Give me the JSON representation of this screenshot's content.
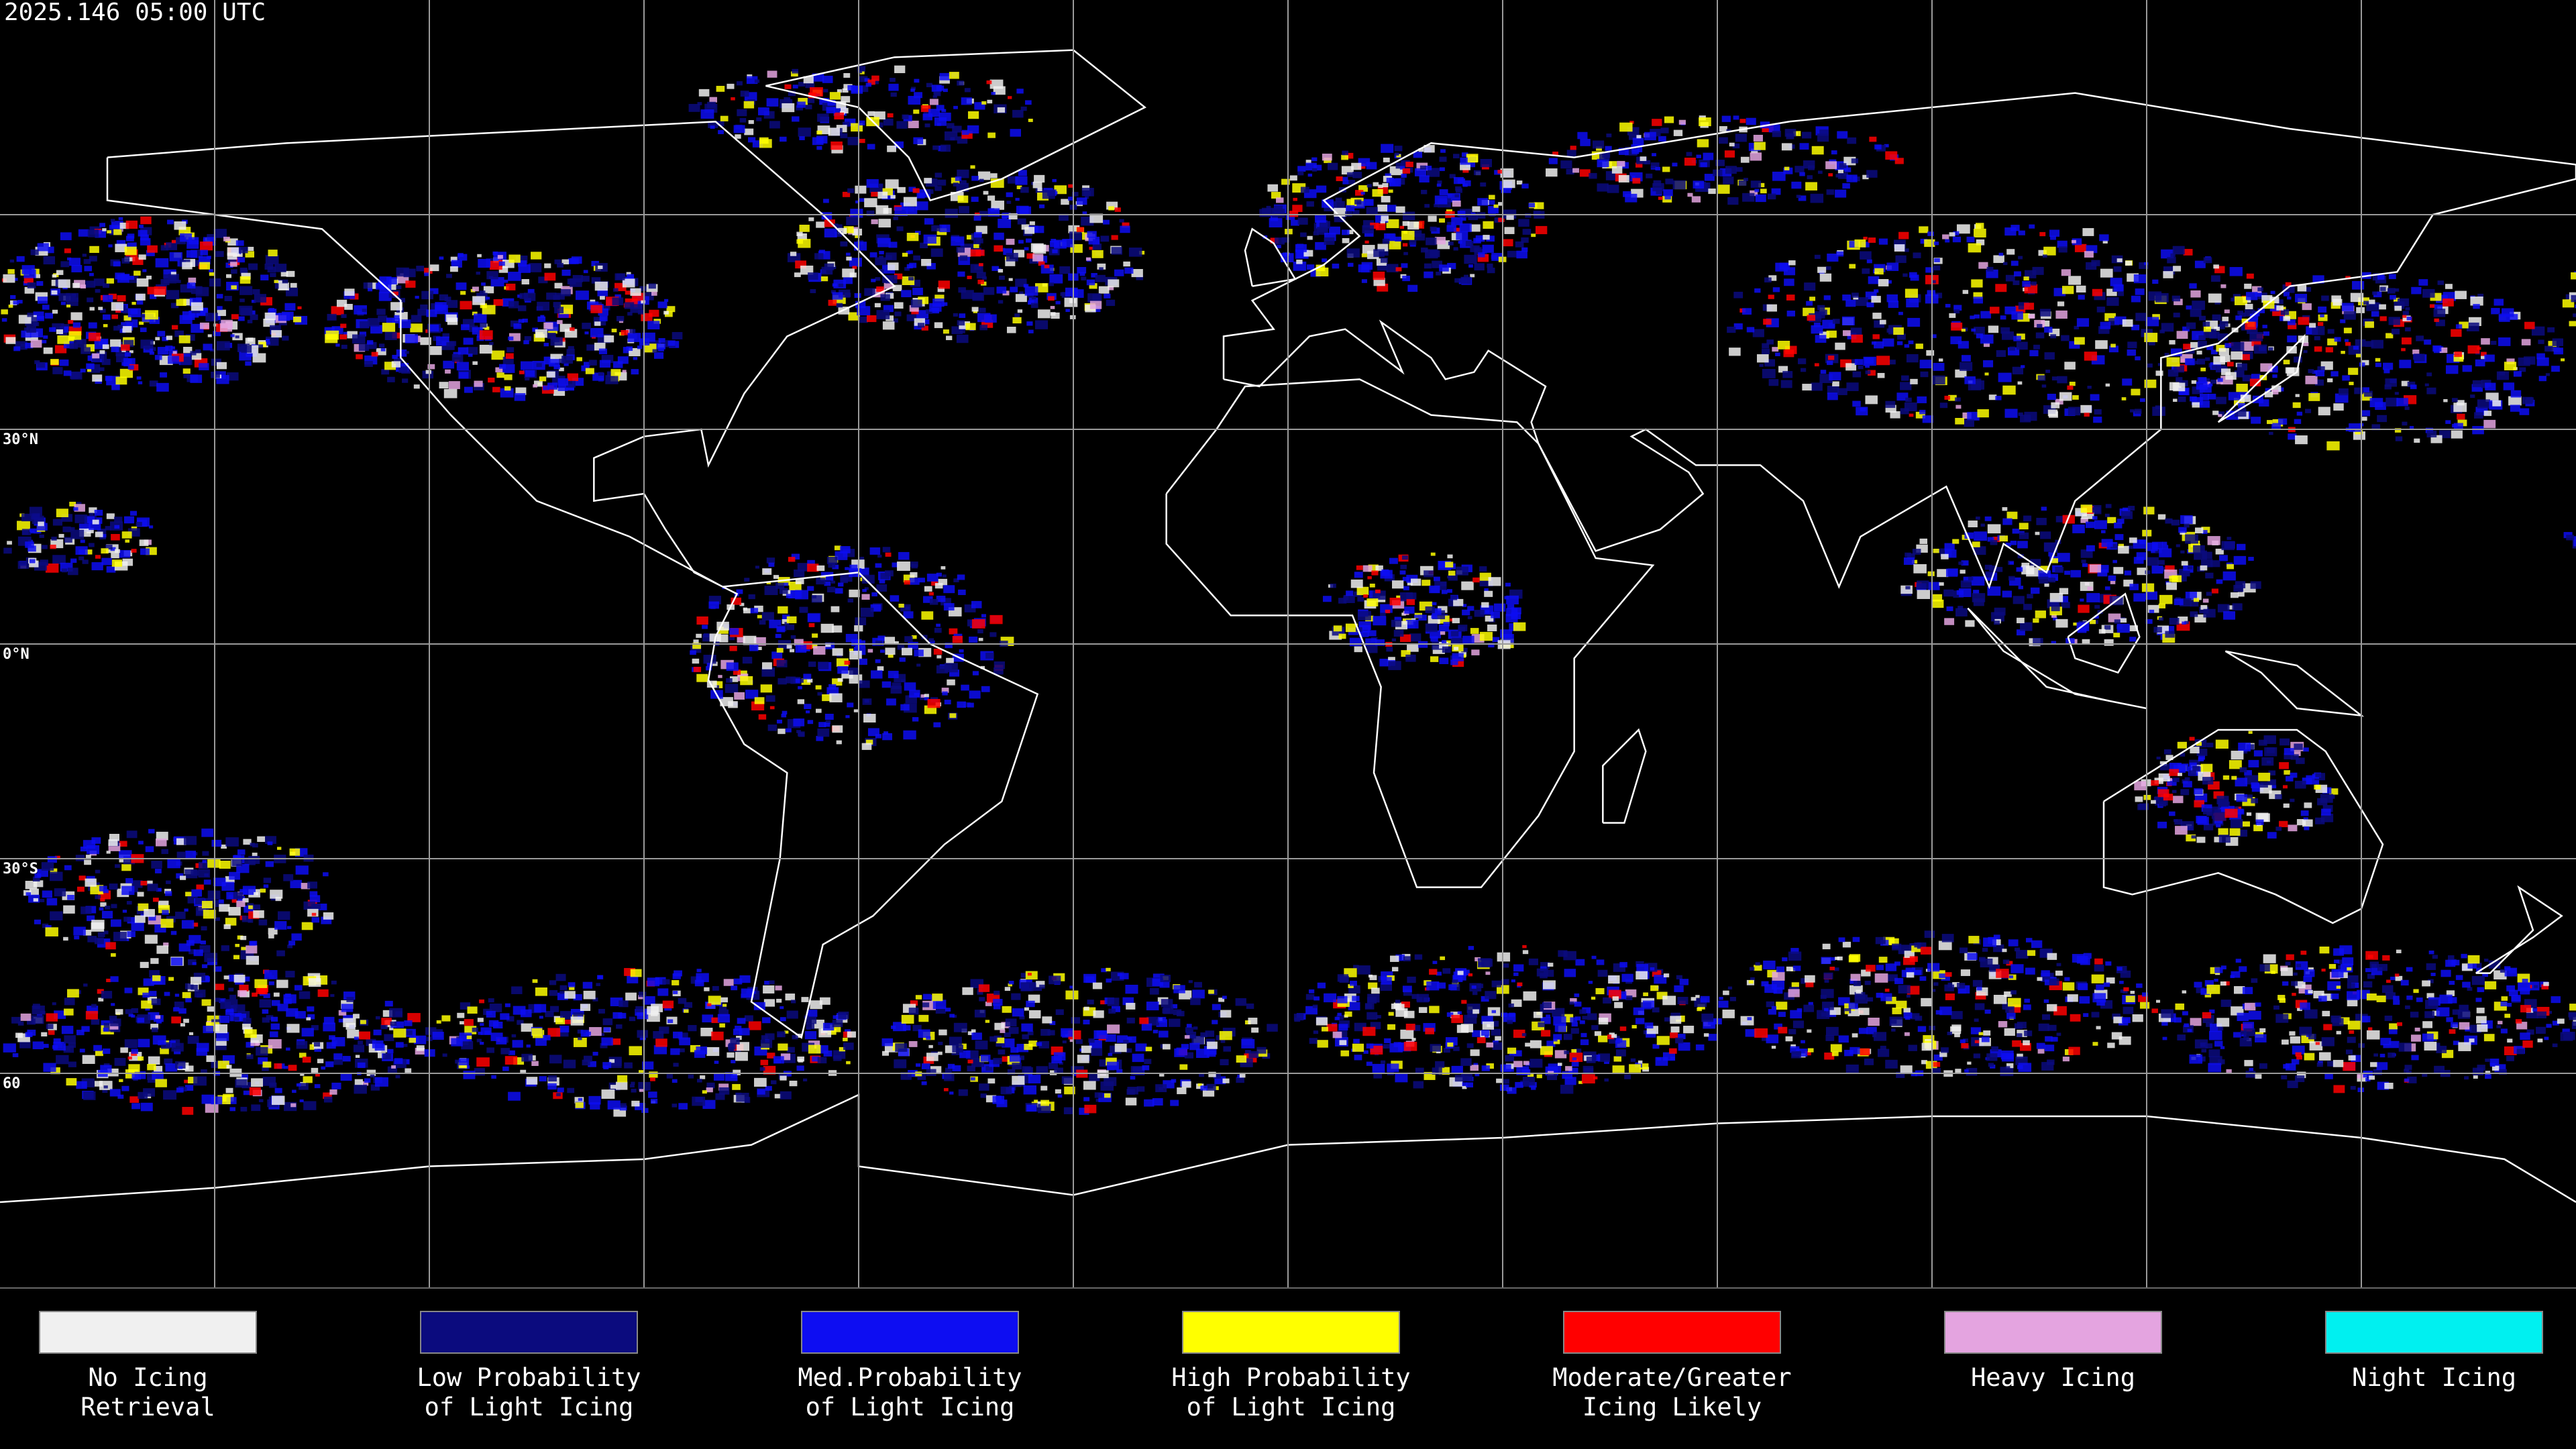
{
  "header": {
    "title": "2025.146 05:00 UTC"
  },
  "map": {
    "lat_labels": [
      "30°N",
      "0°N",
      "30°S",
      "60"
    ]
  },
  "legend": [
    {
      "label": [
        "No Icing",
        "Retrieval"
      ],
      "color": "#f0f0f0"
    },
    {
      "label": [
        "Low Probability",
        "of Light Icing"
      ],
      "color": "#0b0b7e"
    },
    {
      "label": [
        "Med.Probability",
        "of Light Icing"
      ],
      "color": "#0d0df2"
    },
    {
      "label": [
        "High Probability",
        "of Light Icing"
      ],
      "color": "#ffff00"
    },
    {
      "label": [
        "Moderate/Greater",
        "Icing Likely"
      ],
      "color": "#ff0000"
    },
    {
      "label": [
        "Heavy Icing"
      ],
      "color": "#e4a4e0"
    },
    {
      "label": [
        "Night Icing"
      ],
      "color": "#00f0f0"
    }
  ]
}
